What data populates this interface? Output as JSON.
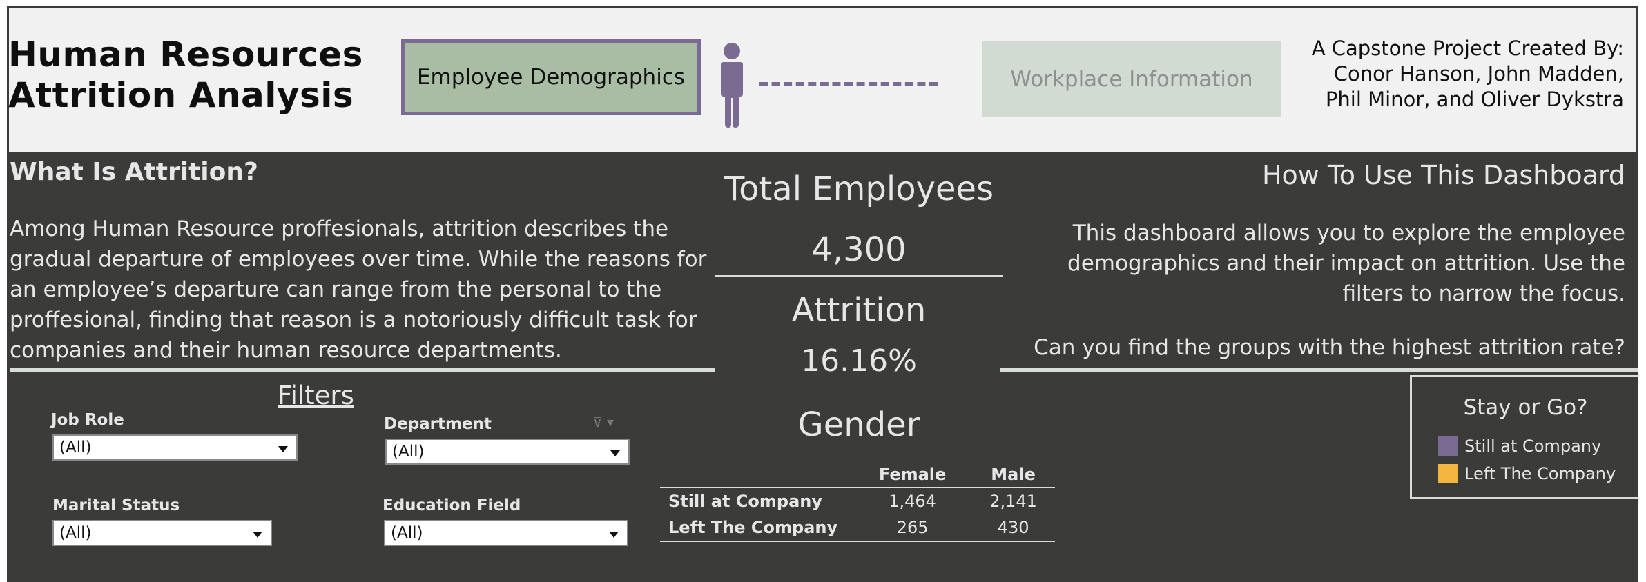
{
  "header": {
    "title_line1": "Human Resources",
    "title_line2": "Attrition Analysis",
    "nav_active": "Employee Demographics",
    "nav_inactive": "Workplace Information",
    "credits": [
      "A Capstone Project Created By:",
      "Conor Hanson, John Madden,",
      "Phil Minor, and Oliver Dykstra"
    ]
  },
  "what": {
    "title": "What Is Attrition?",
    "body": "Among Human Resource proffesionals, attrition describes the gradual departure of employees over time.  While the reasons for an employee’s departure can range from the personal to the proffesional, finding that reason is a notoriously difficult task for companies and their human resource departments."
  },
  "how": {
    "title": "How To Use This Dashboard",
    "body": "This dashboard  allows you to explore the employee demographics and their impact on attrition. Use the filters to narrow the focus.",
    "question": "Can you find the groups with the highest attrition rate?"
  },
  "kpis": {
    "total_title": "Total Employees",
    "total_value": "4,300",
    "attrition_title": "Attrition",
    "attrition_value": "16.16%",
    "gender_title": "Gender"
  },
  "filters": {
    "title": "Filters",
    "job_role": {
      "label": "Job Role",
      "value": "(All)"
    },
    "department": {
      "label": "Department",
      "value": "(All)"
    },
    "marital_status": {
      "label": "Marital Status",
      "value": "(All)"
    },
    "education_field": {
      "label": "Education Field",
      "value": "(All)"
    }
  },
  "gender_table": {
    "columns": [
      "Female",
      "Male"
    ],
    "rows": [
      {
        "label": "Still at Company",
        "female": "1,464",
        "male": "2,141"
      },
      {
        "label": "Left The Company",
        "female": "265",
        "male": "430"
      }
    ]
  },
  "legend": {
    "title": "Stay or Go?",
    "items": [
      {
        "label": "Still at Company",
        "color": "#7b6b93"
      },
      {
        "label": "Left The Company",
        "color": "#f2b640"
      }
    ]
  },
  "colors": {
    "accent_purple": "#7b6b93",
    "accent_green": "#a8bda4",
    "background": "#3b3c3a"
  }
}
